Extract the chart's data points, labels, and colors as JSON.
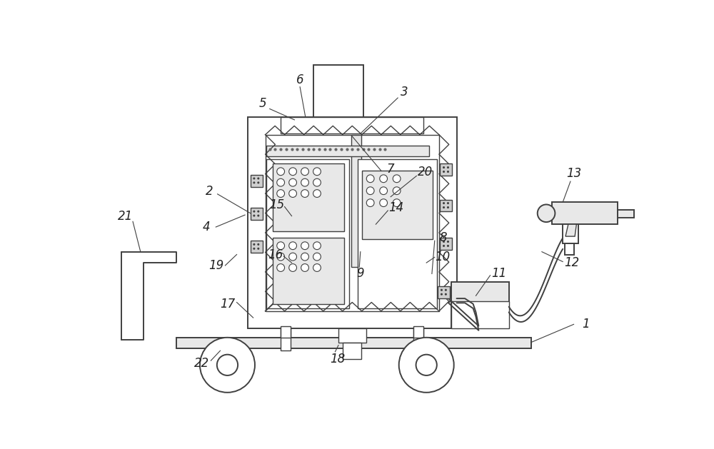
{
  "bg_color": "#ffffff",
  "lc": "#404040",
  "lc_light": "#888888",
  "gray_fill": "#d0d0d0",
  "light_gray": "#e8e8e8",
  "lw": 1.4,
  "lw_thin": 1.0,
  "fig_width": 10.0,
  "fig_height": 6.29
}
